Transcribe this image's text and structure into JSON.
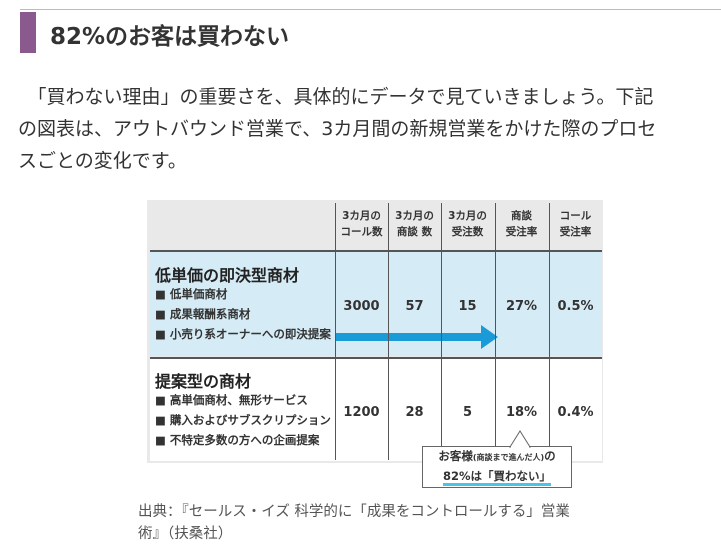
{
  "heading": "82%のお客は買わない",
  "paragraph": [
    "　「買わない理由」の重要さを、具体的にデータで見ていきましょう。下記",
    "の図表は、アウトバウンド営業で、3カ月間の新規営業をかけた際のプロセ",
    "スごとの変化です。"
  ],
  "table": {
    "headers": [
      [
        "3カ月の",
        "コール数"
      ],
      [
        "3カ月の",
        "商談 数"
      ],
      [
        "3カ月の",
        "受注数"
      ],
      [
        "商談",
        "受注率"
      ],
      [
        "コール",
        "受注率"
      ]
    ],
    "rows": [
      {
        "title": "低単価の即決型商材",
        "items": [
          "■ 低単価商材",
          "■ 成果報酬系商材",
          "■ 小売り系オーナーへの即決提案"
        ],
        "cells": [
          "3000",
          "57",
          "15",
          "27%",
          "0.5%"
        ]
      },
      {
        "title": "提案型の商材",
        "items": [
          "■ 高単価商材、無形サービス",
          "■ 購入およびサブスクリプション",
          "■ 不特定多数の方への企画提案"
        ],
        "cells": [
          "1200",
          "28",
          "5",
          "18%",
          "0.4%"
        ]
      }
    ],
    "callout": {
      "line1": [
        "お客様",
        "(商談まで進んだ人)",
        "の"
      ],
      "line2": "82%は「買わない」"
    }
  },
  "caption": [
    "出典：『セールス・イズ 科学的に「成果をコントロールする」営業",
    "術』（扶桑社）"
  ]
}
